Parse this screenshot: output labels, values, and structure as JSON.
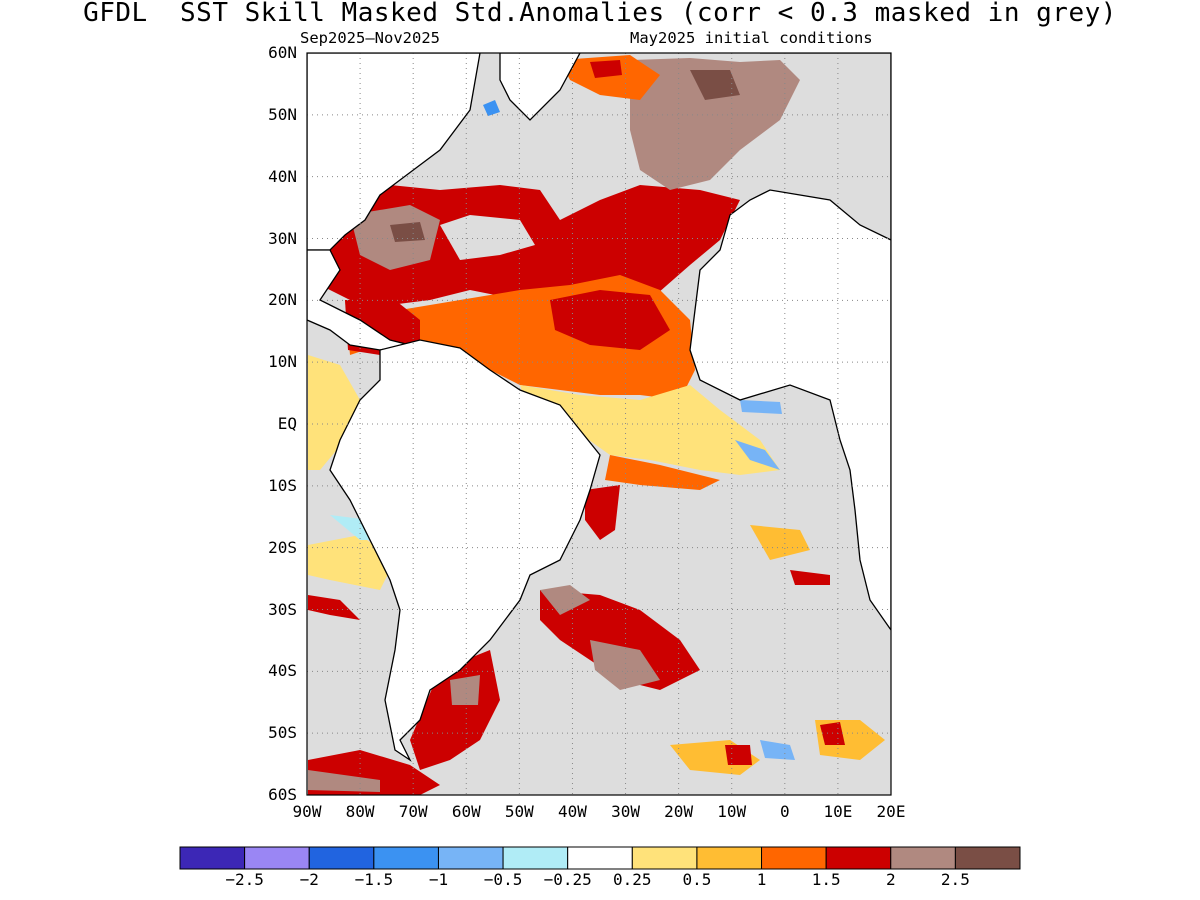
{
  "title": "GFDL  SST Skill Masked Std.Anomalies (corr < 0.3 masked in grey)",
  "subtitle_left": "Sep2025–Nov2025",
  "subtitle_right": "May2025 initial conditions",
  "map": {
    "lat_range": [
      -60,
      60
    ],
    "lon_range": [
      -90,
      20
    ],
    "grid": "dotted",
    "lat_labels": [
      "60N",
      "50N",
      "40N",
      "30N",
      "20N",
      "10N",
      "EQ",
      "10S",
      "20S",
      "30S",
      "40S",
      "50S",
      "60S"
    ],
    "lon_labels": [
      "90W",
      "80W",
      "70W",
      "60W",
      "50W",
      "40W",
      "30W",
      "20W",
      "10W",
      "0",
      "10E",
      "20E"
    ],
    "mask_color": "#dddddd",
    "land_color": "#ffffff",
    "coast_color": "#000000"
  },
  "colorbar": {
    "colors": [
      "#3c27b6",
      "#9a86f4",
      "#2164e0",
      "#3b92f2",
      "#77b4f6",
      "#b0ecf6",
      "#ffffff",
      "#ffe27a",
      "#ffbd33",
      "#ff6600",
      "#cc0000",
      "#b08980",
      "#7a4e45"
    ],
    "labels": [
      "-2.5",
      "-2",
      "-1.5",
      "-1",
      "-0.5",
      "-0.25",
      "0.25",
      "0.5",
      "1",
      "1.5",
      "2",
      "2.5"
    ]
  }
}
